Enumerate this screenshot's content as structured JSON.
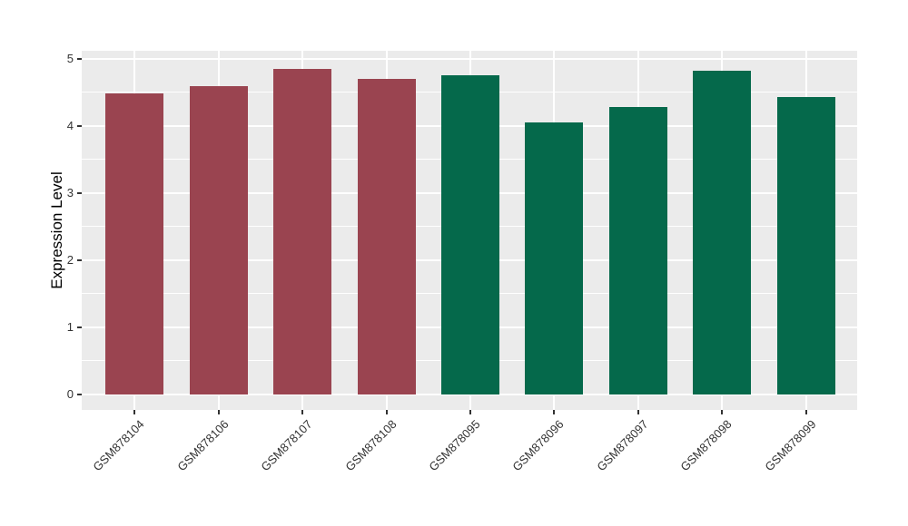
{
  "chart_data": {
    "type": "bar",
    "title": "",
    "xlabel": "",
    "ylabel": "Expression Level",
    "ylim": [
      0,
      5
    ],
    "yticks": [
      0,
      1,
      2,
      3,
      4,
      5
    ],
    "yticks_minor": [
      0.5,
      1.5,
      2.5,
      3.5,
      4.5
    ],
    "grid": "on",
    "legend": "none",
    "categories": [
      "GSM878104",
      "GSM878106",
      "GSM878107",
      "GSM878108",
      "GSM878095",
      "GSM878096",
      "GSM878097",
      "GSM878098",
      "GSM878099"
    ],
    "values": [
      4.48,
      4.59,
      4.85,
      4.7,
      4.76,
      4.05,
      4.28,
      4.82,
      4.43
    ],
    "bar_colors": [
      "#9A4450",
      "#9A4450",
      "#9A4450",
      "#9A4450",
      "#05694B",
      "#05694B",
      "#05694B",
      "#05694B",
      "#05694B"
    ],
    "colors": {
      "group_red": "#9A4450",
      "group_green": "#05694B",
      "panel_background": "#EBEBEB",
      "gridline": "#FFFFFF",
      "axis_text": "#333333",
      "axis_title": "#000000"
    }
  }
}
